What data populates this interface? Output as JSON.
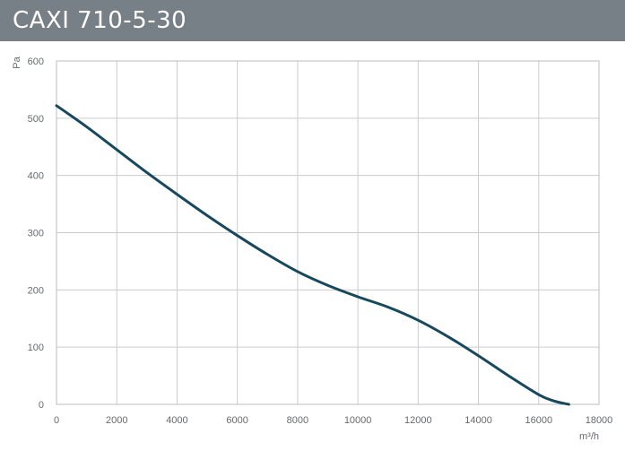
{
  "header": {
    "title": "CAXI 710-5-30"
  },
  "colors": {
    "title_bar": "#788087",
    "curve": "#17485e",
    "grid": "#c9ccd0",
    "frame": "#b9bdc1",
    "tick_text": "#666a6e"
  },
  "chart_data": {
    "type": "line",
    "title": "CAXI 710-5-30",
    "xlabel": "m³/h",
    "ylabel": "Pa",
    "xlim": [
      0,
      18000
    ],
    "ylim": [
      0,
      600
    ],
    "x_ticks": [
      0,
      2000,
      4000,
      6000,
      8000,
      10000,
      12000,
      14000,
      16000,
      18000
    ],
    "y_ticks": [
      0,
      100,
      200,
      300,
      400,
      500,
      600
    ],
    "x_tick_labels": [
      "0",
      "2000",
      "4000",
      "6000",
      "8000",
      "10000",
      "12000",
      "14000",
      "16000",
      "18000"
    ],
    "y_tick_labels": [
      "0",
      "100",
      "200",
      "300",
      "400",
      "500",
      "600"
    ],
    "grid": true,
    "series": [
      {
        "x": [
          0,
          1000,
          2000,
          3000,
          4000,
          5000,
          6000,
          7000,
          8000,
          9000,
          10000,
          11000,
          12000,
          13000,
          14000,
          15000,
          16000,
          16500,
          17000
        ],
        "y": [
          522,
          485,
          445,
          405,
          367,
          330,
          295,
          262,
          232,
          208,
          188,
          170,
          147,
          118,
          85,
          50,
          17,
          6,
          0
        ]
      }
    ]
  }
}
